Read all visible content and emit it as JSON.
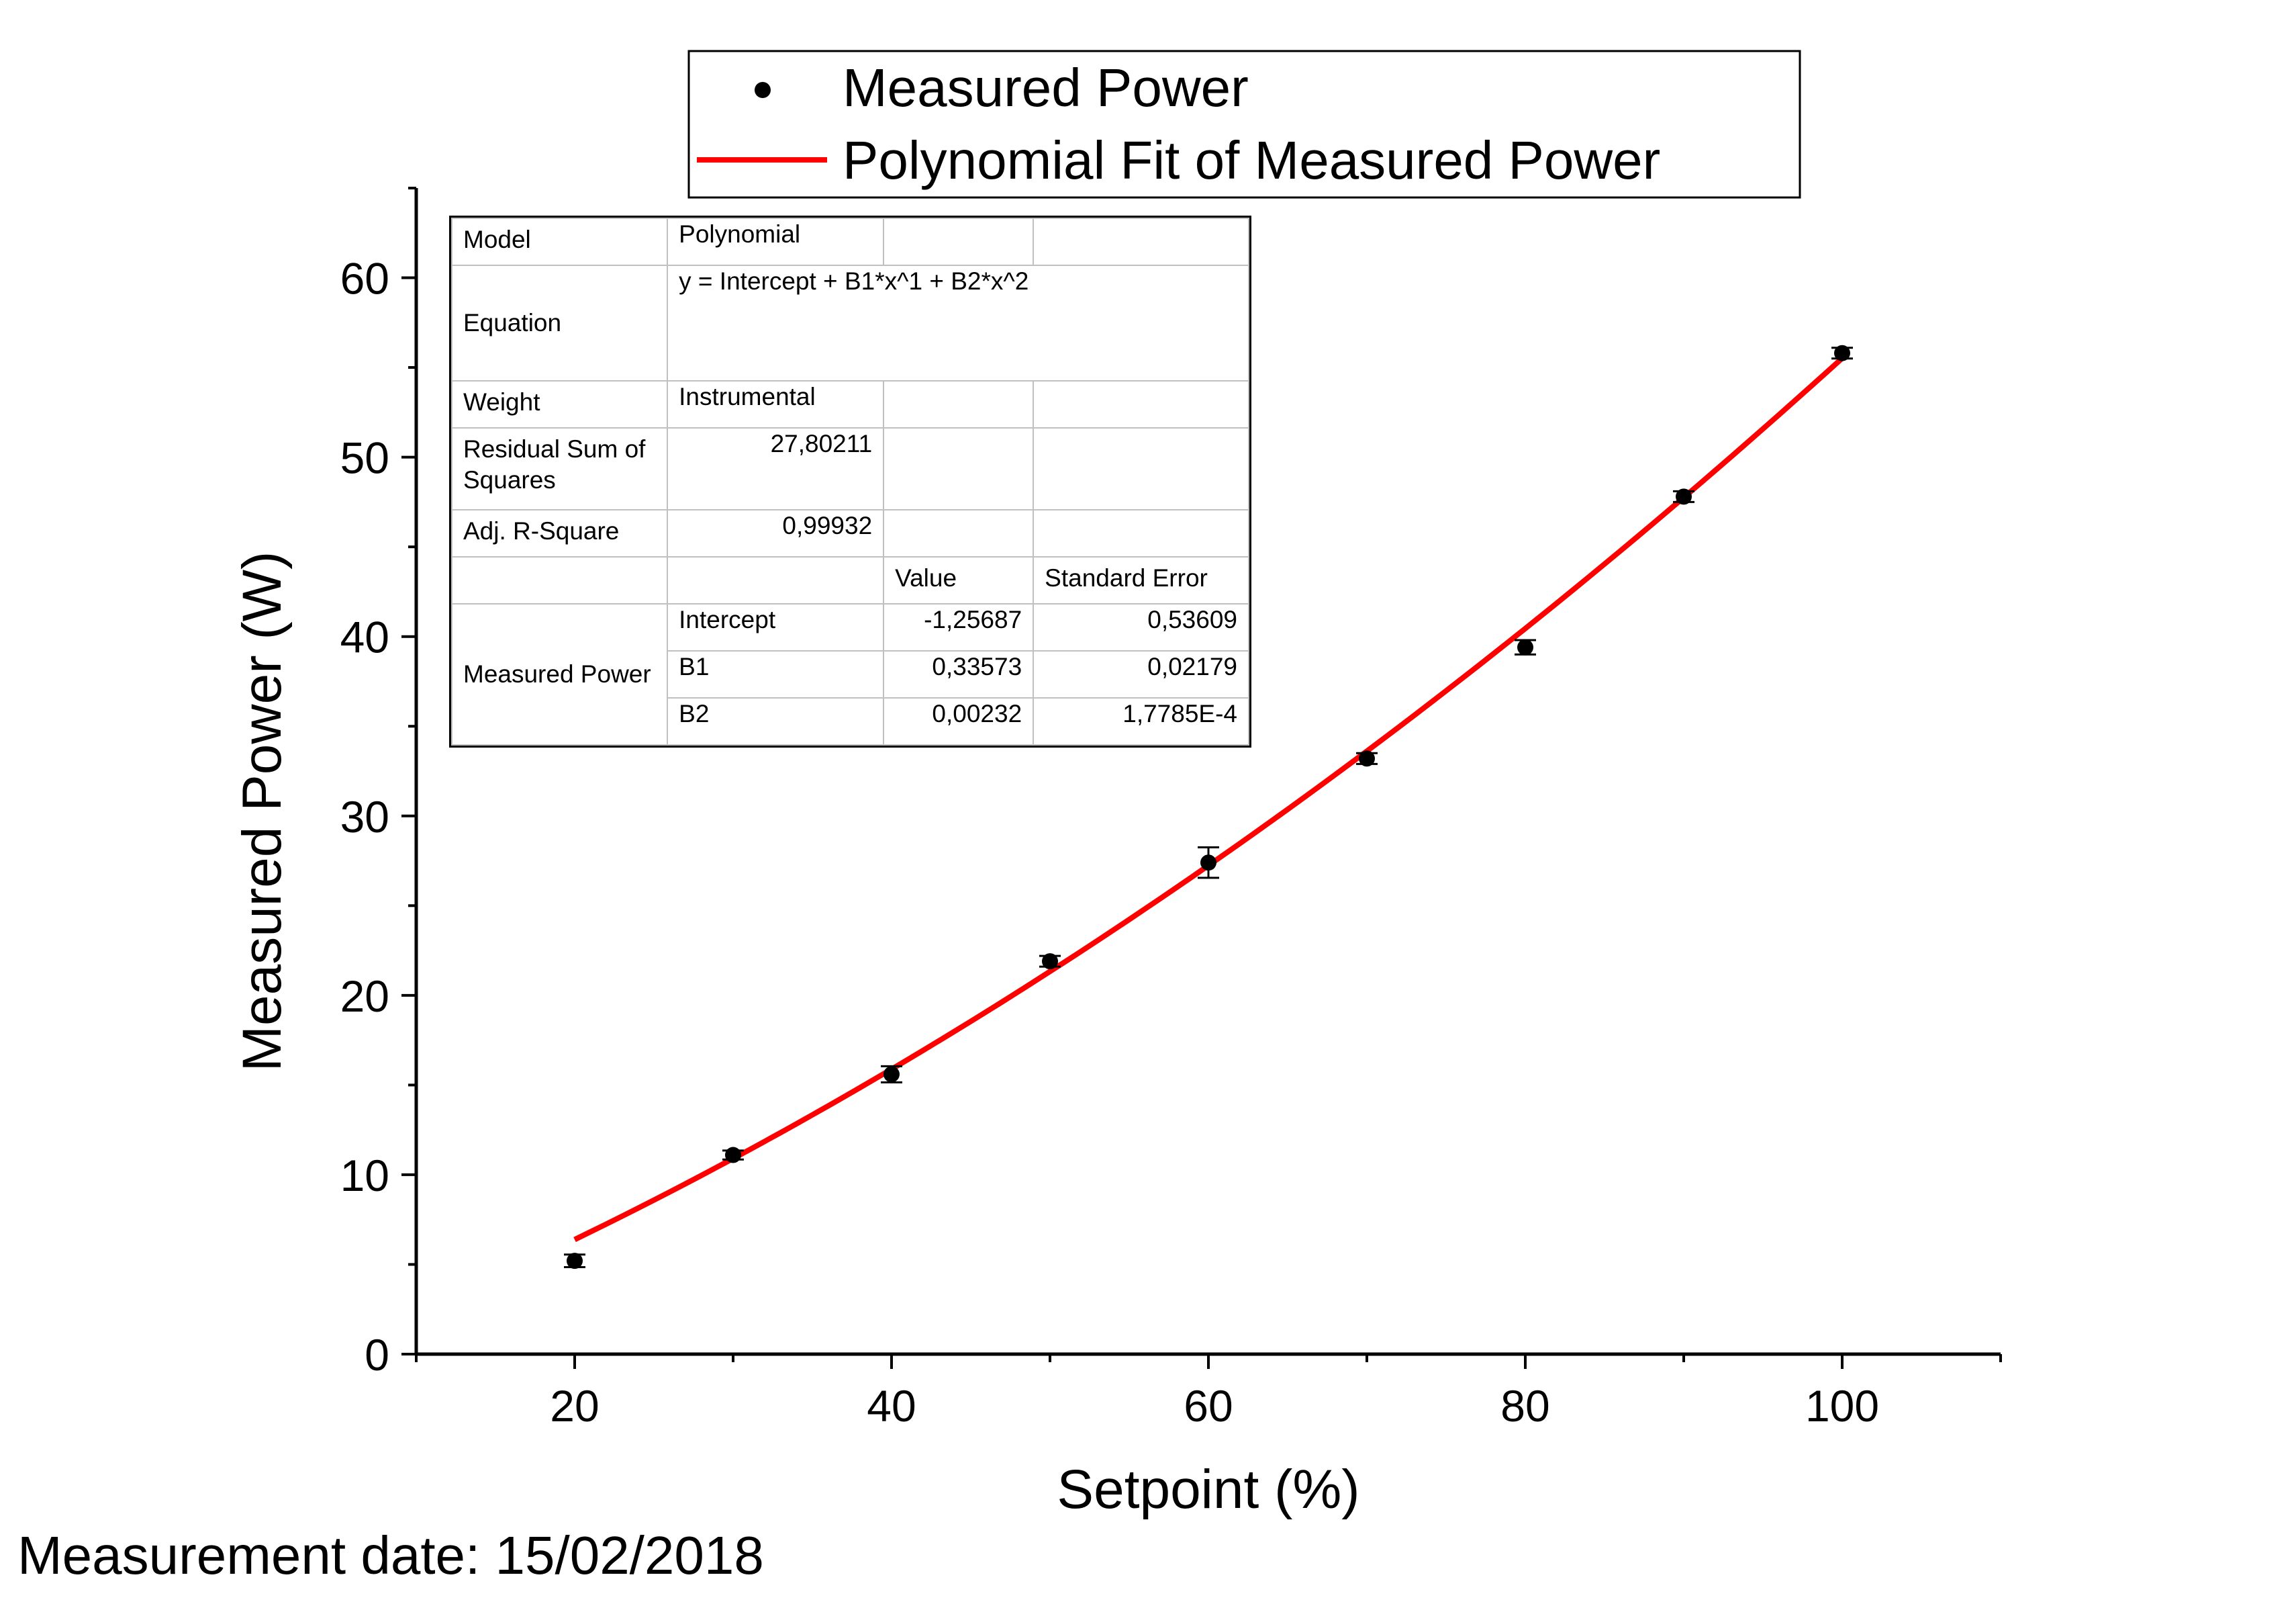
{
  "chart_data": {
    "type": "scatter",
    "xlabel": "Setpoint (%)",
    "ylabel": "Measured Power (W)",
    "xlim": [
      10,
      110
    ],
    "ylim": [
      0,
      65
    ],
    "x_ticks": [
      20,
      40,
      60,
      80,
      100
    ],
    "y_ticks": [
      0,
      10,
      20,
      30,
      40,
      50,
      60
    ],
    "grid": false,
    "legend_position": "top",
    "series": [
      {
        "name": "Measured Power",
        "kind": "points-with-error-bars",
        "color": "#000000",
        "x": [
          20,
          30,
          40,
          50,
          60,
          70,
          80,
          90,
          100
        ],
        "y": [
          5.2,
          11.1,
          15.6,
          21.9,
          27.4,
          33.2,
          39.4,
          47.8,
          55.8
        ],
        "yerr": [
          0.35,
          0.25,
          0.45,
          0.3,
          0.85,
          0.3,
          0.4,
          0.3,
          0.3
        ]
      },
      {
        "name": "Polynomial Fit of Measured Power",
        "kind": "line",
        "color": "#ff0000",
        "x_range": [
          20,
          100
        ],
        "coefficients": {
          "intercept": -1.25687,
          "b1": 0.33573,
          "b2": 0.00232
        }
      }
    ]
  },
  "fit_table": {
    "model_label": "Model",
    "model_value": "Polynomial",
    "equation_label": "Equation",
    "equation_value": "y = Intercept + B1*x^1 + B2*x^2",
    "weight_label": "Weight",
    "weight_value": "Instrumental",
    "rss_label": "Residual Sum of Squares",
    "rss_value": "27,80211",
    "adjr_label": "Adj. R-Square",
    "adjr_value": "0,99932",
    "value_header": "Value",
    "se_header": "Standard Error",
    "group_label": "Measured Power",
    "rows": [
      {
        "param": "Intercept",
        "value": "-1,25687",
        "se": "0,53609"
      },
      {
        "param": "B1",
        "value": "0,33573",
        "se": "0,02179"
      },
      {
        "param": "B2",
        "value": "0,00232",
        "se": "1,7785E-4"
      }
    ]
  },
  "footer": {
    "measurement_date": "Measurement date: 15/02/2018"
  }
}
